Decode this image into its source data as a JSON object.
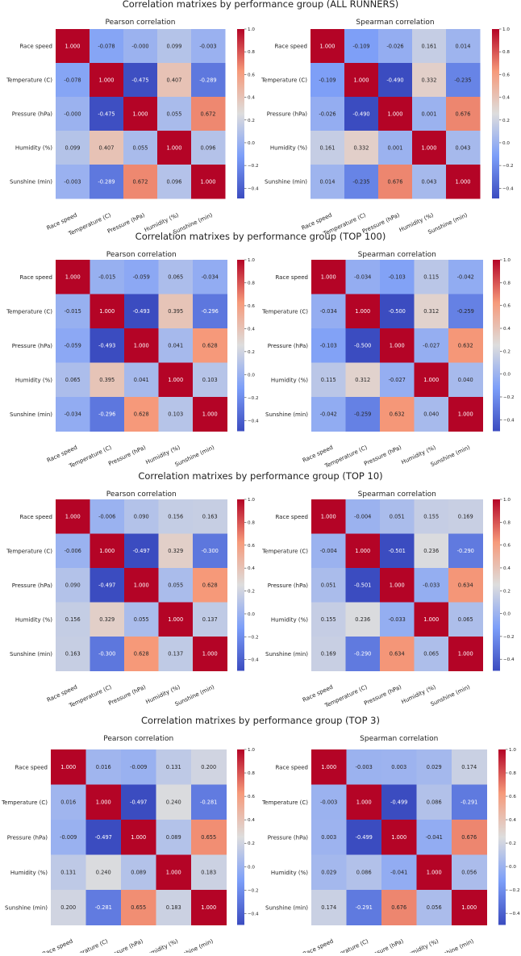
{
  "chart_data": [
    {
      "type": "heatmap",
      "title": "Correlation matrixes by performance group (ALL RUNNERS)",
      "variables": [
        "Race speed",
        "Temperature (C)",
        "Pressure (hPa)",
        "Humidity (%)",
        "Sunshine (min)"
      ],
      "panels": [
        {
          "title": "Pearson correlation",
          "colorbar": {
            "range": [
              -0.49,
              1.0
            ],
            "ticks": [
              "1.0",
              "0.8",
              "0.6",
              "0.4",
              "0.2",
              "0.0",
              "−0.2",
              "−0.4"
            ]
          },
          "matrix": [
            [
              1.0,
              -0.078,
              -0.0,
              0.099,
              -0.003
            ],
            [
              -0.078,
              1.0,
              -0.475,
              0.407,
              -0.289
            ],
            [
              -0.0,
              -0.475,
              1.0,
              0.055,
              0.672
            ],
            [
              0.099,
              0.407,
              0.055,
              1.0,
              0.096
            ],
            [
              -0.003,
              -0.289,
              0.672,
              0.096,
              1.0
            ]
          ],
          "labels": [
            [
              "1.000",
              "-0.078",
              "-0.000",
              "0.099",
              "-0.003"
            ],
            [
              "-0.078",
              "1.000",
              "-0.475",
              "0.407",
              "-0.289"
            ],
            [
              "-0.000",
              "-0.475",
              "1.000",
              "0.055",
              "0.672"
            ],
            [
              "0.099",
              "0.407",
              "0.055",
              "1.000",
              "0.096"
            ],
            [
              "-0.003",
              "-0.289",
              "0.672",
              "0.096",
              "1.000"
            ]
          ]
        },
        {
          "title": "Spearman correlation",
          "colorbar": {
            "range": [
              -0.49,
              1.0
            ],
            "ticks": [
              "1.0",
              "0.8",
              "0.6",
              "0.4",
              "0.2",
              "0.0",
              "−0.2",
              "−0.4"
            ]
          },
          "matrix": [
            [
              1.0,
              -0.109,
              -0.026,
              0.161,
              0.014
            ],
            [
              -0.109,
              1.0,
              -0.49,
              0.332,
              -0.235
            ],
            [
              -0.026,
              -0.49,
              1.0,
              0.001,
              0.676
            ],
            [
              0.161,
              0.332,
              0.001,
              1.0,
              0.043
            ],
            [
              0.014,
              -0.235,
              0.676,
              0.043,
              1.0
            ]
          ],
          "labels": [
            [
              "1.000",
              "-0.109",
              "-0.026",
              "0.161",
              "0.014"
            ],
            [
              "-0.109",
              "1.000",
              "-0.490",
              "0.332",
              "-0.235"
            ],
            [
              "-0.026",
              "-0.490",
              "1.000",
              "0.001",
              "0.676"
            ],
            [
              "0.161",
              "0.332",
              "0.001",
              "1.000",
              "0.043"
            ],
            [
              "0.014",
              "-0.235",
              "0.676",
              "0.043",
              "1.000"
            ]
          ]
        }
      ]
    },
    {
      "type": "heatmap",
      "title": "Correlation matrixes by performance group (TOP 100)",
      "variables": [
        "Race speed",
        "Temperature (C)",
        "Pressure (hPa)",
        "Humidity (%)",
        "Sunshine (min)"
      ],
      "panels": [
        {
          "title": "Pearson correlation",
          "colorbar": {
            "range": [
              -0.493,
              1.0
            ],
            "ticks": [
              "1.0",
              "0.8",
              "0.6",
              "0.4",
              "0.2",
              "0.0",
              "−0.2",
              "−0.4"
            ]
          },
          "matrix": [
            [
              1.0,
              -0.015,
              -0.059,
              0.065,
              -0.034
            ],
            [
              -0.015,
              1.0,
              -0.493,
              0.395,
              -0.296
            ],
            [
              -0.059,
              -0.493,
              1.0,
              0.041,
              0.628
            ],
            [
              0.065,
              0.395,
              0.041,
              1.0,
              0.103
            ],
            [
              -0.034,
              -0.296,
              0.628,
              0.103,
              1.0
            ]
          ],
          "labels": [
            [
              "1.000",
              "-0.015",
              "-0.059",
              "0.065",
              "-0.034"
            ],
            [
              "-0.015",
              "1.000",
              "-0.493",
              "0.395",
              "-0.296"
            ],
            [
              "-0.059",
              "-0.493",
              "1.000",
              "0.041",
              "0.628"
            ],
            [
              "0.065",
              "0.395",
              "0.041",
              "1.000",
              "0.103"
            ],
            [
              "-0.034",
              "-0.296",
              "0.628",
              "0.103",
              "1.000"
            ]
          ]
        },
        {
          "title": "Spearman correlation",
          "colorbar": {
            "range": [
              -0.5,
              1.0
            ],
            "ticks": [
              "1.0",
              "0.8",
              "0.6",
              "0.4",
              "0.2",
              "0.0",
              "−0.2",
              "−0.4"
            ]
          },
          "matrix": [
            [
              1.0,
              -0.034,
              -0.103,
              0.115,
              -0.042
            ],
            [
              -0.034,
              1.0,
              -0.5,
              0.312,
              -0.259
            ],
            [
              -0.103,
              -0.5,
              1.0,
              -0.027,
              0.632
            ],
            [
              0.115,
              0.312,
              -0.027,
              1.0,
              0.04
            ],
            [
              -0.042,
              -0.259,
              0.632,
              0.04,
              1.0
            ]
          ],
          "labels": [
            [
              "1.000",
              "-0.034",
              "-0.103",
              "0.115",
              "-0.042"
            ],
            [
              "-0.034",
              "1.000",
              "-0.500",
              "0.312",
              "-0.259"
            ],
            [
              "-0.103",
              "-0.500",
              "1.000",
              "-0.027",
              "0.632"
            ],
            [
              "0.115",
              "0.312",
              "-0.027",
              "1.000",
              "0.040"
            ],
            [
              "-0.042",
              "-0.259",
              "0.632",
              "0.040",
              "1.000"
            ]
          ]
        }
      ]
    },
    {
      "type": "heatmap",
      "title": "Correlation matrixes by performance group (TOP 10)",
      "variables": [
        "Race speed",
        "Temperature (C)",
        "Pressure (hPa)",
        "Humidity (%)",
        "Sunshine (min)"
      ],
      "panels": [
        {
          "title": "Pearson correlation",
          "colorbar": {
            "range": [
              -0.497,
              1.0
            ],
            "ticks": [
              "1.0",
              "0.8",
              "0.6",
              "0.4",
              "0.2",
              "0.0",
              "−0.2",
              "−0.4"
            ]
          },
          "matrix": [
            [
              1.0,
              -0.006,
              0.09,
              0.156,
              0.163
            ],
            [
              -0.006,
              1.0,
              -0.497,
              0.329,
              -0.3
            ],
            [
              0.09,
              -0.497,
              1.0,
              0.055,
              0.628
            ],
            [
              0.156,
              0.329,
              0.055,
              1.0,
              0.137
            ],
            [
              0.163,
              -0.3,
              0.628,
              0.137,
              1.0
            ]
          ],
          "labels": [
            [
              "1.000",
              "-0.006",
              "0.090",
              "0.156",
              "0.163"
            ],
            [
              "-0.006",
              "1.000",
              "-0.497",
              "0.329",
              "-0.300"
            ],
            [
              "0.090",
              "-0.497",
              "1.000",
              "0.055",
              "0.628"
            ],
            [
              "0.156",
              "0.329",
              "0.055",
              "1.000",
              "0.137"
            ],
            [
              "0.163",
              "-0.300",
              "0.628",
              "0.137",
              "1.000"
            ]
          ]
        },
        {
          "title": "Spearman correlation",
          "colorbar": {
            "range": [
              -0.501,
              1.0
            ],
            "ticks": [
              "1.0",
              "0.8",
              "0.6",
              "0.4",
              "0.2",
              "0.0",
              "−0.2",
              "−0.4"
            ]
          },
          "matrix": [
            [
              1.0,
              -0.004,
              0.051,
              0.155,
              0.169
            ],
            [
              -0.004,
              1.0,
              -0.501,
              0.236,
              -0.29
            ],
            [
              0.051,
              -0.501,
              1.0,
              -0.033,
              0.634
            ],
            [
              0.155,
              0.236,
              -0.033,
              1.0,
              0.065
            ],
            [
              0.169,
              -0.29,
              0.634,
              0.065,
              1.0
            ]
          ],
          "labels": [
            [
              "1.000",
              "-0.004",
              "0.051",
              "0.155",
              "0.169"
            ],
            [
              "-0.004",
              "1.000",
              "-0.501",
              "0.236",
              "-0.290"
            ],
            [
              "0.051",
              "-0.501",
              "1.000",
              "-0.033",
              "0.634"
            ],
            [
              "0.155",
              "0.236",
              "-0.033",
              "1.000",
              "0.065"
            ],
            [
              "0.169",
              "-0.290",
              "0.634",
              "0.065",
              "1.000"
            ]
          ]
        }
      ]
    },
    {
      "type": "heatmap",
      "title": "Correlation matrixes by performance group (TOP 3)",
      "variables": [
        "Race speed",
        "Temperature (C)",
        "Pressure (hPa)",
        "Humidity (%)",
        "Sunshine (min)"
      ],
      "panels": [
        {
          "title": "Pearson correlation",
          "colorbar": {
            "range": [
              -0.497,
              1.0
            ],
            "ticks": [
              "1.0",
              "0.8",
              "0.6",
              "0.4",
              "0.2",
              "0.0",
              "−0.2",
              "−0.4"
            ]
          },
          "matrix": [
            [
              1.0,
              0.016,
              -0.009,
              0.131,
              0.2
            ],
            [
              0.016,
              1.0,
              -0.497,
              0.24,
              -0.281
            ],
            [
              -0.009,
              -0.497,
              1.0,
              0.089,
              0.655
            ],
            [
              0.131,
              0.24,
              0.089,
              1.0,
              0.183
            ],
            [
              0.2,
              -0.281,
              0.655,
              0.183,
              1.0
            ]
          ],
          "labels": [
            [
              "1.000",
              "0.016",
              "-0.009",
              "0.131",
              "0.200"
            ],
            [
              "0.016",
              "1.000",
              "-0.497",
              "0.240",
              "-0.281"
            ],
            [
              "-0.009",
              "-0.497",
              "1.000",
              "0.089",
              "0.655"
            ],
            [
              "0.131",
              "0.240",
              "0.089",
              "1.000",
              "0.183"
            ],
            [
              "0.200",
              "-0.281",
              "0.655",
              "0.183",
              "1.000"
            ]
          ]
        },
        {
          "title": "Spearman correlation",
          "colorbar": {
            "range": [
              -0.499,
              1.0
            ],
            "ticks": [
              "1.0",
              "0.8",
              "0.6",
              "0.4",
              "0.2",
              "0.0",
              "−0.2",
              "−0.4"
            ]
          },
          "matrix": [
            [
              1.0,
              -0.003,
              0.003,
              0.029,
              0.174
            ],
            [
              -0.003,
              1.0,
              -0.499,
              0.086,
              -0.291
            ],
            [
              0.003,
              -0.499,
              1.0,
              -0.041,
              0.676
            ],
            [
              0.029,
              0.086,
              -0.041,
              1.0,
              0.056
            ],
            [
              0.174,
              -0.291,
              0.676,
              0.056,
              1.0
            ]
          ],
          "labels": [
            [
              "1.000",
              "-0.003",
              "0.003",
              "0.029",
              "0.174"
            ],
            [
              "-0.003",
              "1.000",
              "-0.499",
              "0.086",
              "-0.291"
            ],
            [
              "0.003",
              "-0.499",
              "1.000",
              "-0.041",
              "0.676"
            ],
            [
              "0.029",
              "0.086",
              "-0.041",
              "1.000",
              "0.056"
            ],
            [
              "0.174",
              "-0.291",
              "0.676",
              "0.056",
              "1.000"
            ]
          ]
        }
      ]
    }
  ]
}
